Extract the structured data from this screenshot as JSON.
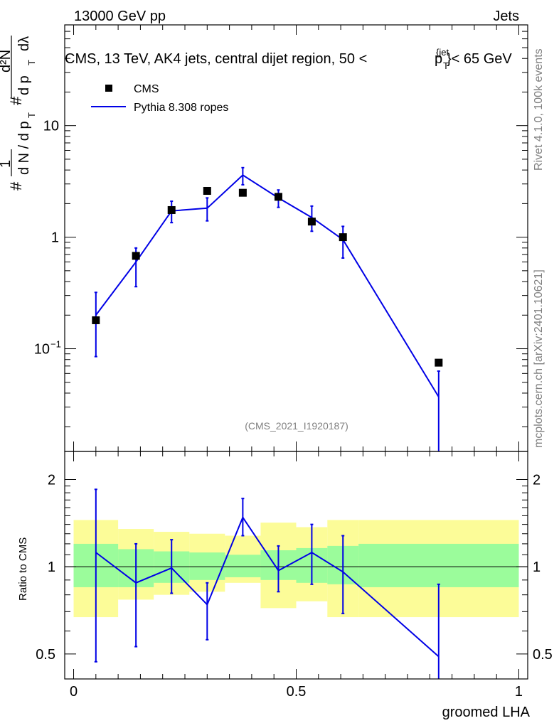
{
  "header": {
    "left": "13000 GeV pp",
    "right": "Jets"
  },
  "title_parts": {
    "prefix": "CMS, 13 TeV, AK4 jets, central dijet region, 50 <",
    "p": "p",
    "sup": "{jet",
    "sub": "T",
    "suffix": "}< 65 GeV"
  },
  "side_labels": {
    "rivet": "Rivet 4.1.0,  100k events",
    "mcplots": "mcplots.cern.ch [arXiv:2401.10621]"
  },
  "analysis_id": "(CMS_2021_I1920187)",
  "y_axis_label": {
    "hash": "#",
    "one": "1",
    "dN": "d N / d p",
    "T": "T",
    "d2N": "d²N",
    "dpT": "d p",
    "dlambda": "dλ"
  },
  "legend": [
    {
      "label": "CMS",
      "marker": "square",
      "color": "#000000"
    },
    {
      "label": "Pythia 8.308 ropes",
      "marker": "line",
      "color": "#0000e6"
    }
  ],
  "colors": {
    "mc": "#0000e6",
    "data": "#000000",
    "band_inner": "#9bfc9b",
    "band_outer": "#fcfc98",
    "axis": "#000000",
    "gray_text": "#808080"
  },
  "chart_data": [
    {
      "type": "scatter",
      "name": "main",
      "xlabel": "groomed LHA",
      "ylabel": "1/(dN/dpT) d²N/(dpT dλ)",
      "yscale": "log",
      "xlim": [
        -0.02,
        1.02
      ],
      "ylim": [
        0.012,
        80
      ],
      "yticks": [
        {
          "value": 10,
          "label": "10"
        },
        {
          "value": 1,
          "label": "1"
        },
        {
          "value": 0.1,
          "label": "10",
          "exp": "−1"
        }
      ],
      "series": [
        {
          "name": "CMS",
          "x": [
            0.05,
            0.14,
            0.22,
            0.3,
            0.38,
            0.46,
            0.535,
            0.605,
            0.82
          ],
          "y": [
            0.18,
            0.68,
            1.75,
            2.6,
            2.5,
            2.3,
            1.38,
            1.0,
            0.075
          ]
        },
        {
          "name": "Pythia 8.308 ropes",
          "x": [
            0.05,
            0.14,
            0.22,
            0.3,
            0.38,
            0.46,
            0.535,
            0.605,
            0.82
          ],
          "y": [
            0.2,
            0.6,
            1.72,
            1.82,
            3.6,
            2.25,
            1.5,
            0.95,
            0.037
          ],
          "err_low": [
            0.085,
            0.36,
            1.35,
            1.4,
            2.95,
            1.85,
            1.13,
            0.65,
            0.01
          ],
          "err_high": [
            0.32,
            0.8,
            2.1,
            2.25,
            4.2,
            2.65,
            1.9,
            1.25,
            0.063
          ]
        }
      ]
    },
    {
      "type": "line",
      "name": "ratio",
      "xlabel": "groomed LHA",
      "ylabel": "Ratio to CMS",
      "yscale": "log",
      "xlim": [
        -0.02,
        1.02
      ],
      "ylim": [
        0.41,
        2.5
      ],
      "yticks": [
        {
          "value": 2,
          "label": "2"
        },
        {
          "value": 1,
          "label": "1"
        },
        {
          "value": 0.5,
          "label": "0.5"
        }
      ],
      "xticks": [
        {
          "value": 0,
          "label": "0"
        },
        {
          "value": 0.5,
          "label": "0.5"
        },
        {
          "value": 1,
          "label": "1"
        }
      ],
      "reference_line": 1,
      "bands": {
        "edges": [
          0.0,
          0.1,
          0.18,
          0.26,
          0.34,
          0.42,
          0.5,
          0.57,
          0.64,
          1.0
        ],
        "inner_low": [
          0.85,
          0.85,
          0.88,
          0.9,
          0.92,
          0.9,
          0.88,
          0.87,
          0.85
        ],
        "inner_high": [
          1.2,
          1.15,
          1.13,
          1.12,
          1.1,
          1.14,
          1.16,
          1.18,
          1.2
        ],
        "outer_low": [
          0.67,
          0.77,
          0.8,
          0.82,
          0.88,
          0.72,
          0.76,
          0.67,
          0.67
        ],
        "outer_high": [
          1.45,
          1.35,
          1.32,
          1.3,
          1.28,
          1.42,
          1.37,
          1.45,
          1.45
        ]
      },
      "series": [
        {
          "name": "Pythia 8.308 ropes",
          "x": [
            0.05,
            0.14,
            0.22,
            0.3,
            0.38,
            0.46,
            0.535,
            0.605,
            0.82
          ],
          "y": [
            1.12,
            0.88,
            0.99,
            0.74,
            1.48,
            0.97,
            1.12,
            0.96,
            0.49
          ],
          "err_low": [
            0.47,
            0.53,
            0.81,
            0.56,
            1.28,
            0.82,
            0.87,
            0.69,
            0.41
          ],
          "err_high": [
            1.85,
            1.2,
            1.24,
            0.88,
            1.72,
            1.18,
            1.4,
            1.28,
            0.87
          ]
        }
      ]
    }
  ]
}
